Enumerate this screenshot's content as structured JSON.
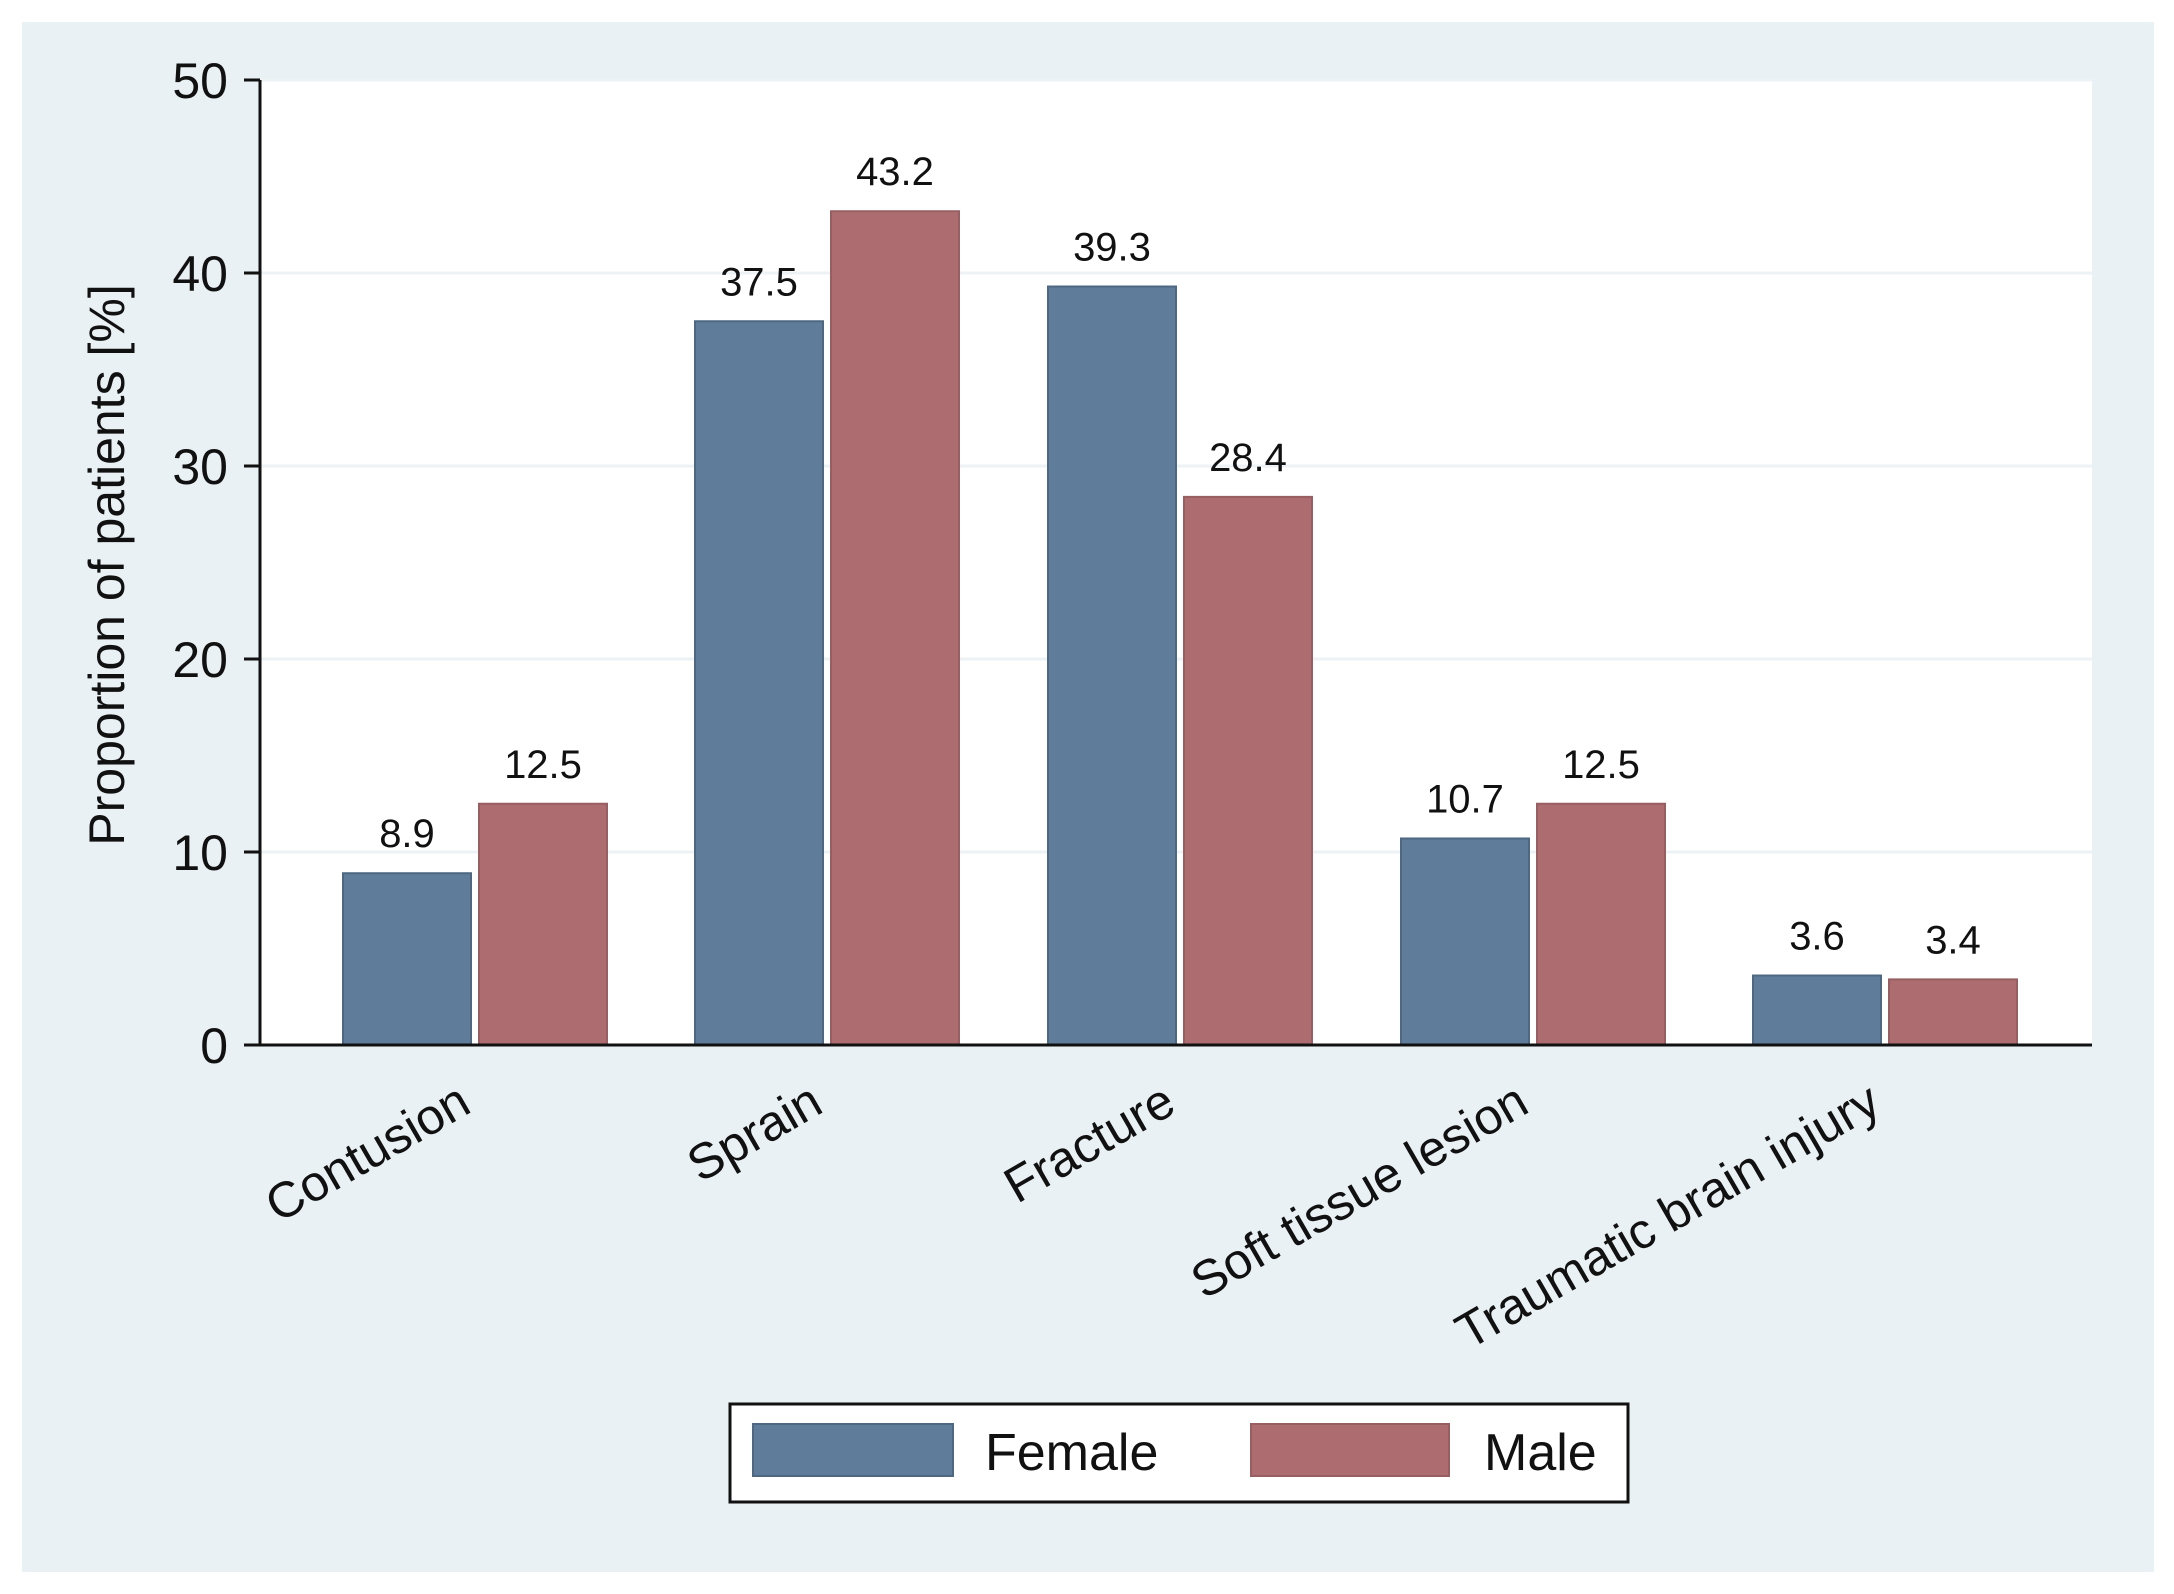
{
  "chart_data": {
    "type": "bar",
    "title": "",
    "xlabel": "",
    "ylabel": "Proportion of patients [%]",
    "categories": [
      "Contusion",
      "Sprain",
      "Fracture",
      "Soft tissue lesion",
      "Traumatic brain injury"
    ],
    "series": [
      {
        "name": "Female",
        "color": "#5f7d9a",
        "values": [
          8.9,
          37.5,
          39.3,
          10.7,
          3.6
        ],
        "labels": [
          "8.9",
          "37.5",
          "39.3",
          "10.7",
          "3.6"
        ]
      },
      {
        "name": "Male",
        "color": "#ad6d70",
        "values": [
          12.5,
          43.2,
          28.4,
          12.5,
          3.4
        ],
        "labels": [
          "12.5",
          "43.2",
          "28.4",
          "12.5",
          "3.4"
        ]
      }
    ],
    "ylim": [
      0,
      50
    ],
    "yticks": [
      0,
      10,
      20,
      30,
      40,
      50
    ],
    "ytick_labels": [
      "0",
      "10",
      "20",
      "30",
      "40",
      "50"
    ],
    "grid": true,
    "legend": {
      "placement": "bottom-center",
      "entries": [
        "Female",
        "Male"
      ]
    },
    "colors": {
      "outer_background": "#e9f1f4",
      "plot_background": "#ffffff",
      "grid": "#edf2f5",
      "axis": "#111111",
      "female": "#5f7d9a",
      "male": "#ad6d70"
    }
  }
}
